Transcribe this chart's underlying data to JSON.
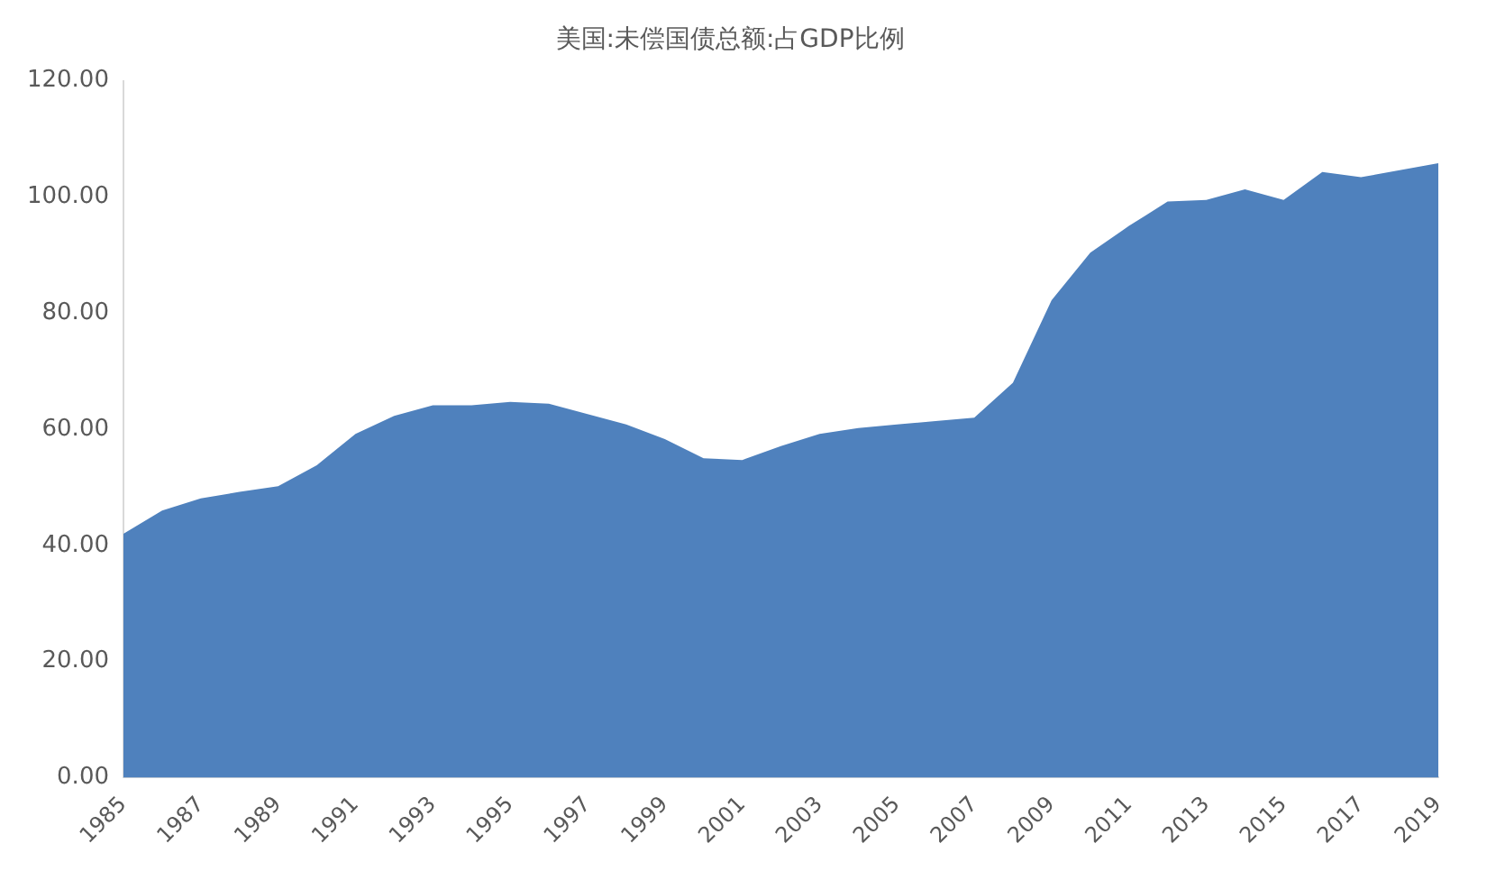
{
  "chart_data": {
    "type": "area",
    "title": "美国:未偿国债总额:占GDP比例",
    "categories": [
      "1985",
      null,
      "1987",
      null,
      "1989",
      null,
      "1991",
      null,
      "1993",
      null,
      "1995",
      null,
      "1997",
      null,
      "1999",
      null,
      "2001",
      null,
      "2003",
      null,
      "2005",
      null,
      "2007",
      null,
      "2009",
      null,
      "2011",
      null,
      "2013",
      null,
      "2015",
      null,
      "2017",
      null,
      "2019"
    ],
    "series": [
      {
        "color": "#4f81bd",
        "values": [
          42.0,
          46.0,
          48.1,
          49.2,
          50.2,
          53.8,
          59.2,
          62.3,
          64.1,
          64.1,
          64.7,
          64.4,
          62.6,
          60.8,
          58.3,
          55.0,
          54.7,
          57.1,
          59.2,
          60.2,
          60.8,
          61.4,
          62.0,
          68.0,
          82.2,
          90.4,
          95.0,
          99.2,
          99.5,
          101.3,
          99.5,
          104.3,
          103.4,
          104.6,
          105.8
        ]
      }
    ],
    "ylim": [
      0,
      120
    ],
    "yticks": [
      {
        "value": 0,
        "label": "0.00"
      },
      {
        "value": 20,
        "label": "20.00"
      },
      {
        "value": 40,
        "label": "40.00"
      },
      {
        "value": 60,
        "label": "60.00"
      },
      {
        "value": 80,
        "label": "80.00"
      },
      {
        "value": 100,
        "label": "100.00"
      },
      {
        "value": 120,
        "label": "120.00"
      }
    ],
    "grid": false,
    "legend": false
  }
}
